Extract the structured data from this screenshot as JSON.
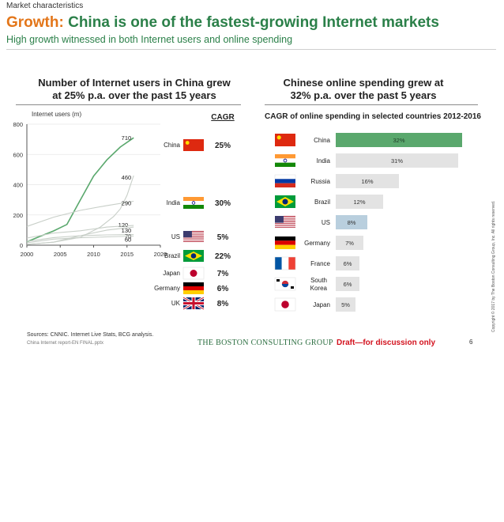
{
  "header": {
    "section_label": "Market characteristics",
    "title_strong": "Growth:",
    "title_rest": " China is one of the fastest-growing Internet markets",
    "subtitle": "High growth witnessed in both Internet users and online spending"
  },
  "left_panel": {
    "title_line1": "Number of Internet users in China grew",
    "title_line2": "at 25% p.a. over the past 15 years",
    "cagr_header": "CAGR"
  },
  "right_panel": {
    "title_line1": "Chinese online spending grew at",
    "title_line2": "32% p.a. over the past 5 years",
    "subtitle": "CAGR of online spending in selected countries 2012-2016"
  },
  "footer": {
    "sources": "Sources: CNNIC. Internet Live Stats, BCG analysis.",
    "filename": "China Internet report-EN FINAL.pptx",
    "logo": "THE BOSTON CONSULTING GROUP",
    "draft": "Draft—for discussion only",
    "page": "6",
    "copyright": "Copyright © 2017 by The Boston Consulting Group, Inc. All rights reserved."
  },
  "colors": {
    "accent_green": "#2b8049",
    "title_orange": "#e3761a",
    "highlight_bar": "#5aa86d",
    "us_bar": "#b9cfde",
    "grey_bar": "#e3e3e3",
    "line_china": "#5aa86d",
    "line_other": "#c8cfc8",
    "draft_red": "#d3121e"
  },
  "chart_data": [
    {
      "type": "line",
      "title": "",
      "ylabel": "Internet users (m)",
      "xlim": [
        2000,
        2020
      ],
      "ylim": [
        0,
        800
      ],
      "x_ticks": [
        2000,
        2005,
        2010,
        2015,
        2020
      ],
      "y_ticks": [
        0,
        200,
        400,
        600,
        800
      ],
      "grid": "horizontal",
      "series": [
        {
          "name": "China",
          "flag": "cn-flag-icon",
          "cagr": "25%",
          "end_label": "710",
          "highlight": true,
          "x": [
            2000,
            2002,
            2004,
            2006,
            2008,
            2010,
            2012,
            2014,
            2016
          ],
          "y": [
            22,
            59,
            94,
            137,
            298,
            457,
            564,
            649,
            710
          ]
        },
        {
          "name": "India",
          "flag": "in-flag-icon",
          "cagr": "30%",
          "end_label": "460",
          "x": [
            2000,
            2004,
            2008,
            2011,
            2013,
            2014,
            2015,
            2016
          ],
          "y": [
            6,
            20,
            52,
            120,
            190,
            240,
            330,
            460
          ]
        },
        {
          "name": "US",
          "flag": "us-flag-icon",
          "cagr": "5%",
          "end_label": "290",
          "x": [
            2000,
            2004,
            2008,
            2012,
            2016
          ],
          "y": [
            124,
            185,
            230,
            262,
            290
          ]
        },
        {
          "name": "Brazil",
          "flag": "br-flag-icon",
          "cagr": "22%",
          "end_label": "120",
          "x": [
            2000,
            2004,
            2008,
            2012,
            2016
          ],
          "y": [
            5,
            20,
            63,
            100,
            120
          ]
        },
        {
          "name": "Japan",
          "flag": "jp-flag-icon",
          "cagr": "7%",
          "end_label": "130",
          "x": [
            2000,
            2004,
            2008,
            2012,
            2016
          ],
          "y": [
            47,
            80,
            95,
            120,
            130
          ]
        },
        {
          "name": "Germany",
          "flag": "de-flag-icon",
          "cagr": "6%",
          "end_label": "70",
          "x": [
            2000,
            2004,
            2008,
            2012,
            2016
          ],
          "y": [
            25,
            50,
            63,
            68,
            70
          ]
        },
        {
          "name": "UK",
          "flag": "gb-flag-icon",
          "cagr": "8%",
          "end_label": "60",
          "x": [
            2000,
            2004,
            2008,
            2012,
            2016
          ],
          "y": [
            16,
            40,
            49,
            55,
            60
          ]
        }
      ]
    },
    {
      "type": "bar",
      "orientation": "horizontal",
      "title": "CAGR of online spending in selected countries 2012-2016",
      "categories": [
        "China",
        "India",
        "Russia",
        "Brazil",
        "US",
        "Germany",
        "France",
        "South Korea",
        "Japan"
      ],
      "category_lines": [
        [
          "China"
        ],
        [
          "India"
        ],
        [
          "Russia"
        ],
        [
          "Brazil"
        ],
        [
          "US"
        ],
        [
          "Germany"
        ],
        [
          "France"
        ],
        [
          "South",
          "Korea"
        ],
        [
          "Japan"
        ]
      ],
      "flags": [
        "cn-flag-icon",
        "in-flag-icon",
        "ru-flag-icon",
        "br-flag-icon",
        "us-flag-icon",
        "de-flag-icon",
        "fr-flag-icon",
        "kr-flag-icon",
        "jp-flag-icon"
      ],
      "values": [
        32,
        31,
        16,
        12,
        8,
        7,
        6,
        6,
        5
      ],
      "labels": [
        "32%",
        "31%",
        "16%",
        "12%",
        "8%",
        "7%",
        "6%",
        "6%",
        "5%"
      ],
      "unit": "%"
    }
  ]
}
